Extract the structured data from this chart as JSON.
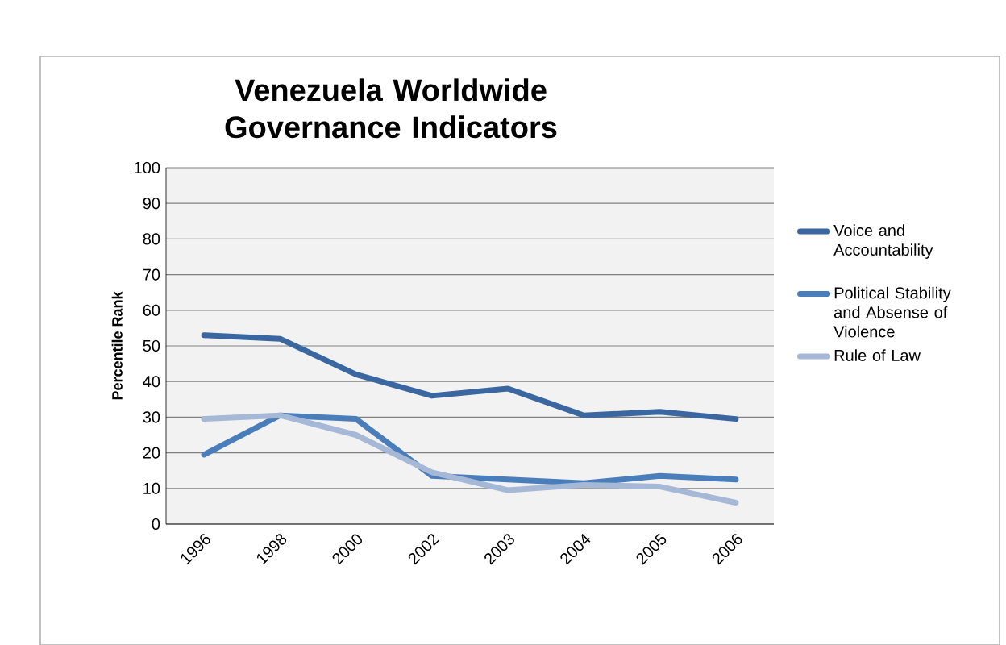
{
  "chart_data": {
    "type": "line",
    "title": "Venezuela Worldwide Governance Indicators",
    "ylabel": "Percentile Rank",
    "categories": [
      "1996",
      "1998",
      "2000",
      "2002",
      "2003",
      "2004",
      "2005",
      "2006"
    ],
    "series": [
      {
        "name": "Voice and Accountability",
        "color": "#3a67a0",
        "values": [
          53,
          52,
          42,
          36,
          38,
          30.5,
          31.5,
          29.5
        ]
      },
      {
        "name": "Political Stability and Absense of Violence",
        "color": "#4a7ebb",
        "values": [
          19.5,
          30.5,
          29.5,
          13.5,
          12.5,
          11.5,
          13.5,
          12.5
        ]
      },
      {
        "name": "Rule of Law",
        "color": "#a5b8d6",
        "values": [
          29.5,
          30.5,
          25,
          14.5,
          9.5,
          11,
          10.5,
          6
        ]
      }
    ],
    "ylim": [
      0,
      100
    ],
    "yticks": [
      0,
      10,
      20,
      30,
      40,
      50,
      60,
      70,
      80,
      90,
      100
    ],
    "grid": "y",
    "legend": "right",
    "marker": "none",
    "line_style": "solid"
  }
}
